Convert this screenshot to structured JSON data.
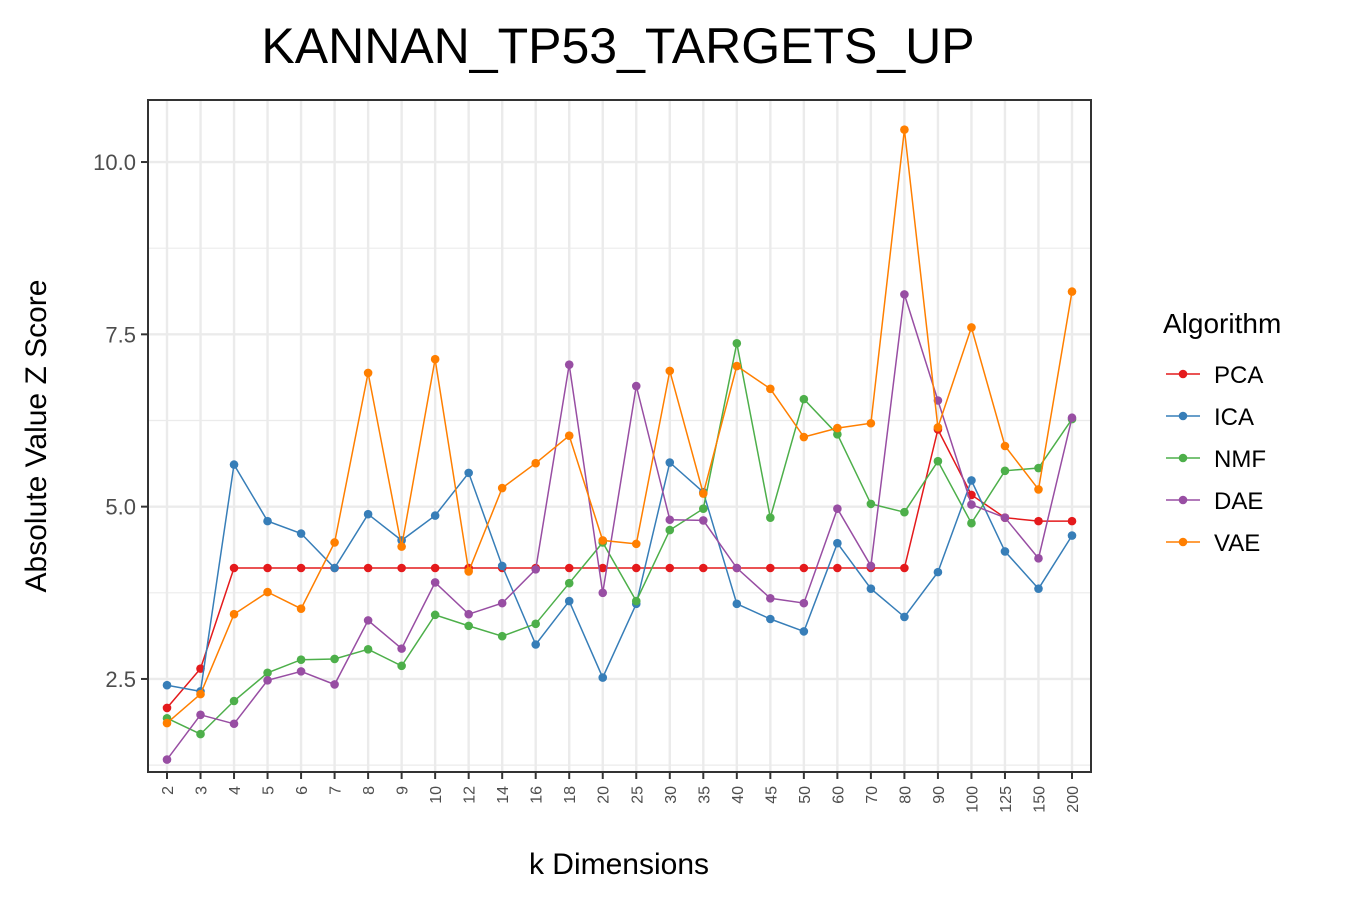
{
  "chart_data": {
    "type": "line",
    "title": "KANNAN_TP53_TARGETS_UP",
    "xlabel": "k Dimensions",
    "ylabel": "Absolute Value Z Score",
    "categories": [
      "2",
      "3",
      "4",
      "5",
      "6",
      "7",
      "8",
      "9",
      "10",
      "12",
      "14",
      "16",
      "18",
      "20",
      "25",
      "30",
      "35",
      "40",
      "45",
      "50",
      "60",
      "70",
      "80",
      "90",
      "100",
      "125",
      "150",
      "200"
    ],
    "ylim": [
      1.15,
      10.9
    ],
    "yticks": [
      2.5,
      5.0,
      7.5,
      10.0
    ],
    "ytick_labels": [
      "2.5",
      "5.0",
      "7.5",
      "10.0"
    ],
    "grid": true,
    "legend": {
      "title": "Algorithm",
      "position": "right"
    },
    "series": [
      {
        "name": "PCA",
        "color": "#e41a1c",
        "values": [
          2.08,
          2.65,
          4.11,
          4.11,
          4.11,
          4.11,
          4.11,
          4.11,
          4.11,
          4.11,
          4.11,
          4.11,
          4.11,
          4.11,
          4.11,
          4.11,
          4.11,
          4.11,
          4.11,
          4.11,
          4.11,
          4.11,
          4.11,
          6.12,
          5.17,
          4.84,
          4.79,
          4.79
        ]
      },
      {
        "name": "ICA",
        "color": "#377eb8",
        "values": [
          2.41,
          2.32,
          5.61,
          4.79,
          4.61,
          4.11,
          4.89,
          4.51,
          4.87,
          5.49,
          4.14,
          3.0,
          3.63,
          2.52,
          3.59,
          5.64,
          5.21,
          3.59,
          3.37,
          3.19,
          4.47,
          3.81,
          3.4,
          4.05,
          5.38,
          4.35,
          3.81,
          4.58
        ]
      },
      {
        "name": "NMF",
        "color": "#4daf4a",
        "values": [
          1.93,
          1.7,
          2.18,
          2.59,
          2.78,
          2.79,
          2.93,
          2.69,
          3.43,
          3.27,
          3.12,
          3.3,
          3.89,
          4.48,
          3.63,
          4.66,
          4.97,
          7.37,
          4.84,
          6.56,
          6.05,
          5.04,
          4.92,
          5.66,
          4.76,
          5.52,
          5.56,
          6.27
        ]
      },
      {
        "name": "DAE",
        "color": "#984ea3",
        "values": [
          1.33,
          1.98,
          1.85,
          2.48,
          2.61,
          2.42,
          3.35,
          2.94,
          3.9,
          3.44,
          3.6,
          4.09,
          7.06,
          3.75,
          6.75,
          4.81,
          4.8,
          4.11,
          3.67,
          3.6,
          4.97,
          4.14,
          8.08,
          6.54,
          5.03,
          4.84,
          4.25,
          6.29
        ]
      },
      {
        "name": "VAE",
        "color": "#ff7f00",
        "values": [
          1.86,
          2.28,
          3.44,
          3.76,
          3.52,
          4.48,
          6.94,
          4.42,
          7.14,
          4.06,
          5.27,
          5.63,
          6.03,
          4.51,
          4.46,
          6.97,
          5.19,
          7.04,
          6.71,
          6.01,
          6.14,
          6.21,
          10.47,
          6.15,
          7.6,
          5.88,
          5.25,
          8.12
        ]
      }
    ]
  }
}
